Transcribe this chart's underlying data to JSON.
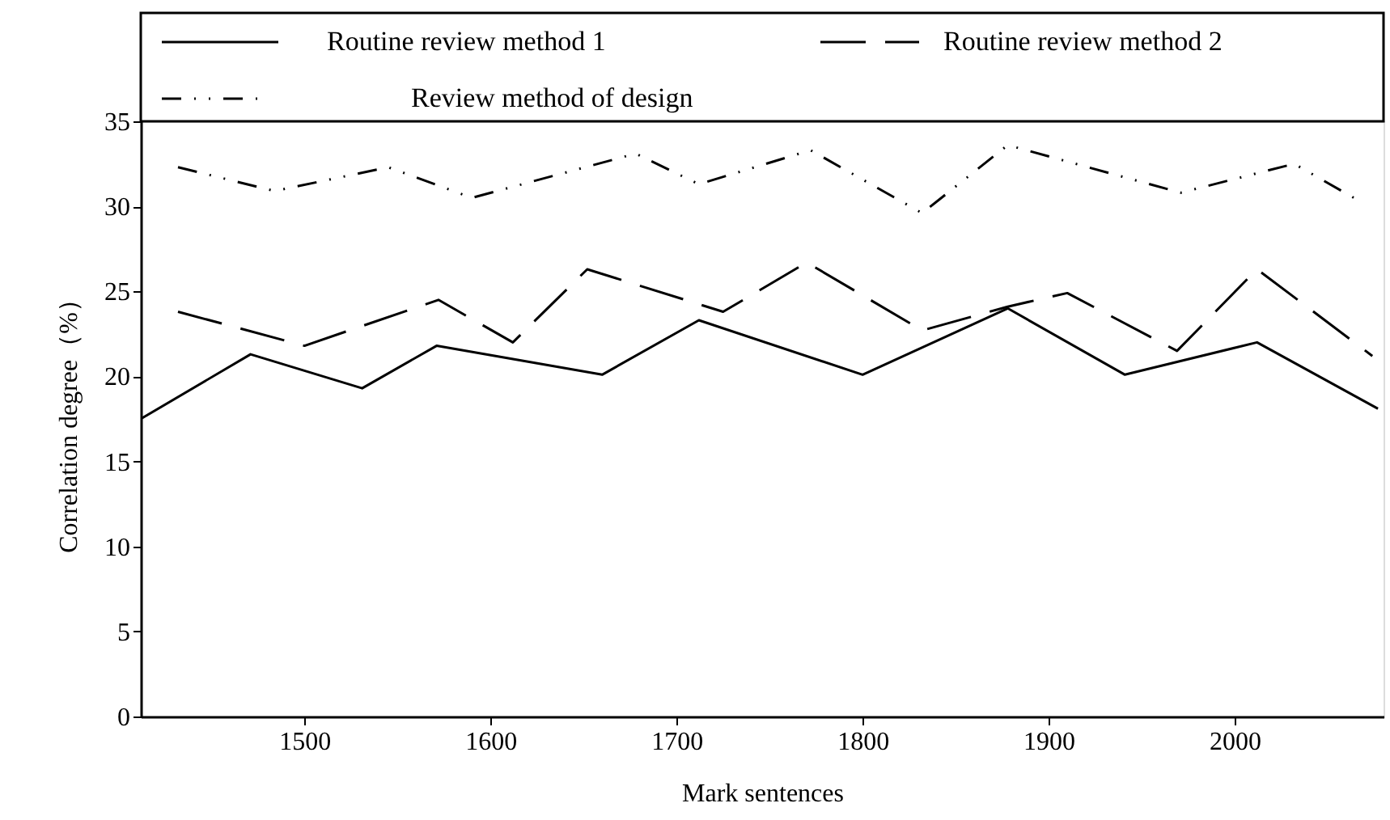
{
  "chart_data": {
    "type": "line",
    "xlabel": "Mark sentences",
    "ylabel": "Correlation degree（%）",
    "xlim": [
      1412,
      2080
    ],
    "xticks": [
      1500,
      1600,
      1700,
      1800,
      1900,
      2000
    ],
    "ylim": [
      0,
      35
    ],
    "yticks": [
      0,
      5,
      10,
      15,
      20,
      25,
      30,
      35
    ],
    "grid": false,
    "legend": "top",
    "marker": "none",
    "series": [
      {
        "name": "Routine review method 1",
        "color": "#000000",
        "line_style": "solid",
        "x": [
          1412,
          1471,
          1531,
          1571,
          1660,
          1712,
          1800,
          1878,
          1941,
          2012,
          2077
        ],
        "values": [
          17.5,
          21.3,
          19.3,
          21.8,
          20.1,
          23.3,
          20.1,
          24.0,
          20.1,
          22.0,
          18.1
        ]
      },
      {
        "name": "Routine review method 2",
        "color": "#000000",
        "line_style": "dashed",
        "x": [
          1432,
          1500,
          1572,
          1612,
          1652,
          1725,
          1770,
          1832,
          1878,
          1910,
          1969,
          2012,
          2074
        ],
        "values": [
          23.8,
          21.8,
          24.5,
          22.0,
          26.3,
          23.8,
          26.7,
          22.7,
          24.1,
          24.9,
          21.5,
          26.3,
          21.2
        ]
      },
      {
        "name": "Review method of design",
        "color": "#000000",
        "line_style": "dotted",
        "x": [
          1432,
          1484,
          1545,
          1590,
          1678,
          1712,
          1772,
          1832,
          1878,
          1971,
          2032,
          2064
        ],
        "values": [
          32.3,
          30.9,
          32.3,
          30.5,
          33.1,
          31.3,
          33.3,
          29.6,
          33.6,
          30.8,
          32.5,
          30.5
        ]
      }
    ]
  }
}
